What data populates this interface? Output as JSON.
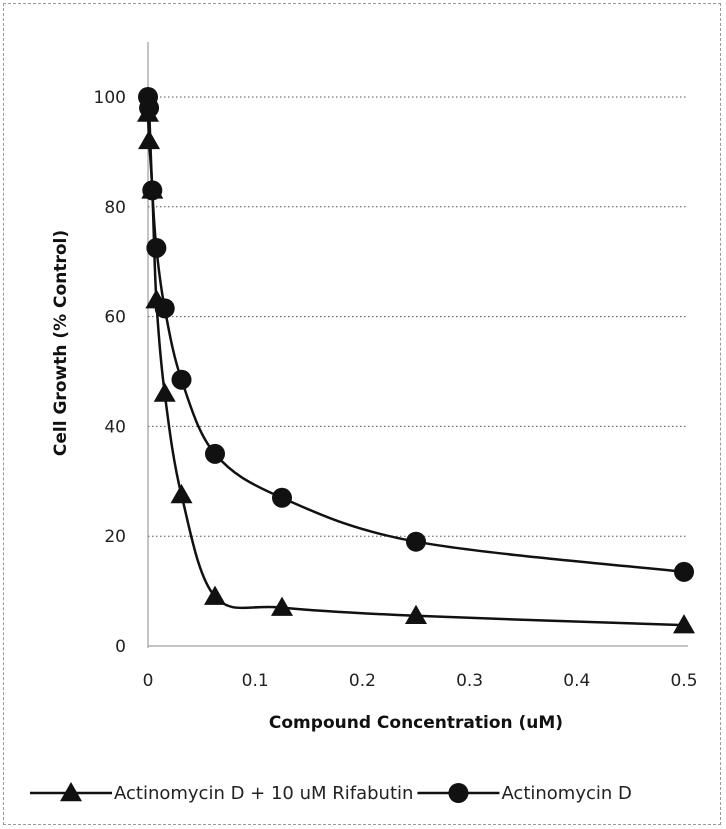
{
  "chart_data": {
    "type": "line",
    "xlabel": "Compound Concentration (uM)",
    "ylabel": "Cell Growth (% Control)",
    "xlim": [
      0,
      0.5
    ],
    "ylim": [
      0,
      100
    ],
    "x_ticks": [
      0,
      0.1,
      0.2,
      0.3,
      0.4,
      0.5
    ],
    "x_tick_labels": [
      "0",
      "0.1",
      "0.2",
      "0.3",
      "0.4",
      "0.5"
    ],
    "y_ticks": [
      0,
      20,
      40,
      60,
      80,
      100
    ],
    "y_tick_labels": [
      "0",
      "20",
      "40",
      "60",
      "80",
      "100"
    ],
    "grid": "horizontal-dotted",
    "legend_position": "bottom",
    "series": [
      {
        "name": "Actinomycin D + 10 uM Rifabutin",
        "marker": "triangle",
        "color": "#111111",
        "points": [
          {
            "x": 0,
            "y": 97
          },
          {
            "x": 0.001,
            "y": 92
          },
          {
            "x": 0.004,
            "y": 83
          },
          {
            "x": 0.0078,
            "y": 63
          },
          {
            "x": 0.0156,
            "y": 46
          },
          {
            "x": 0.03125,
            "y": 27.5
          },
          {
            "x": 0.0625,
            "y": 9
          },
          {
            "x": 0.125,
            "y": 7
          },
          {
            "x": 0.25,
            "y": 5.5
          },
          {
            "x": 0.5,
            "y": 3.8
          }
        ]
      },
      {
        "name": "Actinomycin D",
        "marker": "circle",
        "color": "#111111",
        "points": [
          {
            "x": 0,
            "y": 100
          },
          {
            "x": 0.001,
            "y": 98
          },
          {
            "x": 0.004,
            "y": 83
          },
          {
            "x": 0.0078,
            "y": 72.5
          },
          {
            "x": 0.0156,
            "y": 61.5
          },
          {
            "x": 0.03125,
            "y": 48.5
          },
          {
            "x": 0.0625,
            "y": 35
          },
          {
            "x": 0.125,
            "y": 27
          },
          {
            "x": 0.25,
            "y": 19
          },
          {
            "x": 0.5,
            "y": 13.5
          }
        ]
      }
    ]
  }
}
